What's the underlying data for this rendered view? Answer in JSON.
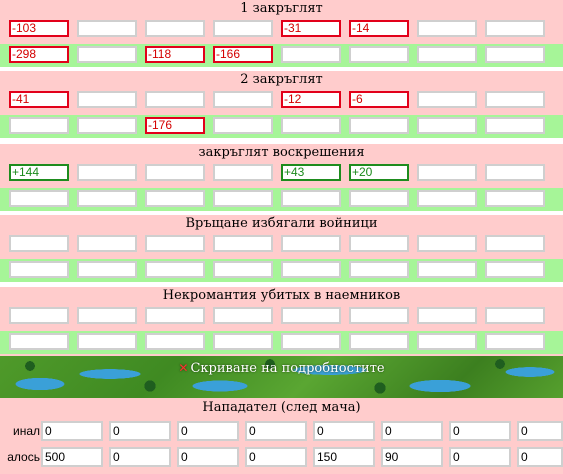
{
  "sections": [
    {
      "title": "1 закръглят",
      "rows": [
        [
          "-103",
          "",
          "",
          "",
          "-31",
          "-14",
          "",
          ""
        ],
        [
          "-298",
          "",
          "-118",
          "-166",
          "",
          "",
          "",
          ""
        ]
      ]
    },
    {
      "title": "2 закръглят",
      "rows": [
        [
          "-41",
          "",
          "",
          "",
          "-12",
          "-6",
          "",
          ""
        ],
        [
          "",
          "",
          "-176",
          "",
          "",
          "",
          "",
          ""
        ]
      ]
    },
    {
      "title": "закръглят воскрешения",
      "rows": [
        [
          "+144",
          "",
          "",
          "",
          "+43",
          "+20",
          "",
          ""
        ],
        [
          "",
          "",
          "",
          "",
          "",
          "",
          "",
          ""
        ]
      ]
    },
    {
      "title": "Връщане избягали войници",
      "rows": [
        [
          "",
          "",
          "",
          "",
          "",
          "",
          "",
          ""
        ],
        [
          "",
          "",
          "",
          "",
          "",
          "",
          "",
          ""
        ]
      ]
    },
    {
      "title": "Некромантия убитых в наемников",
      "rows": [
        [
          "",
          "",
          "",
          "",
          "",
          "",
          "",
          ""
        ],
        [
          "",
          "",
          "",
          "",
          "",
          "",
          "",
          ""
        ]
      ]
    }
  ],
  "banner": {
    "close_symbol": "✕",
    "link_text": "Скриване на подробностите"
  },
  "attacker": {
    "title": "Нападател (след мача)",
    "rows": [
      {
        "label": "инал",
        "values": [
          "0",
          "0",
          "0",
          "0",
          "0",
          "0",
          "0",
          "0"
        ]
      },
      {
        "label": "алось",
        "values": [
          "500",
          "0",
          "0",
          "0",
          "150",
          "90",
          "0",
          "0"
        ]
      }
    ]
  },
  "colors": {
    "pink": "#ffcccc",
    "green": "#a6f598",
    "negative": "#e2001a",
    "positive": "#1e8c1e"
  }
}
